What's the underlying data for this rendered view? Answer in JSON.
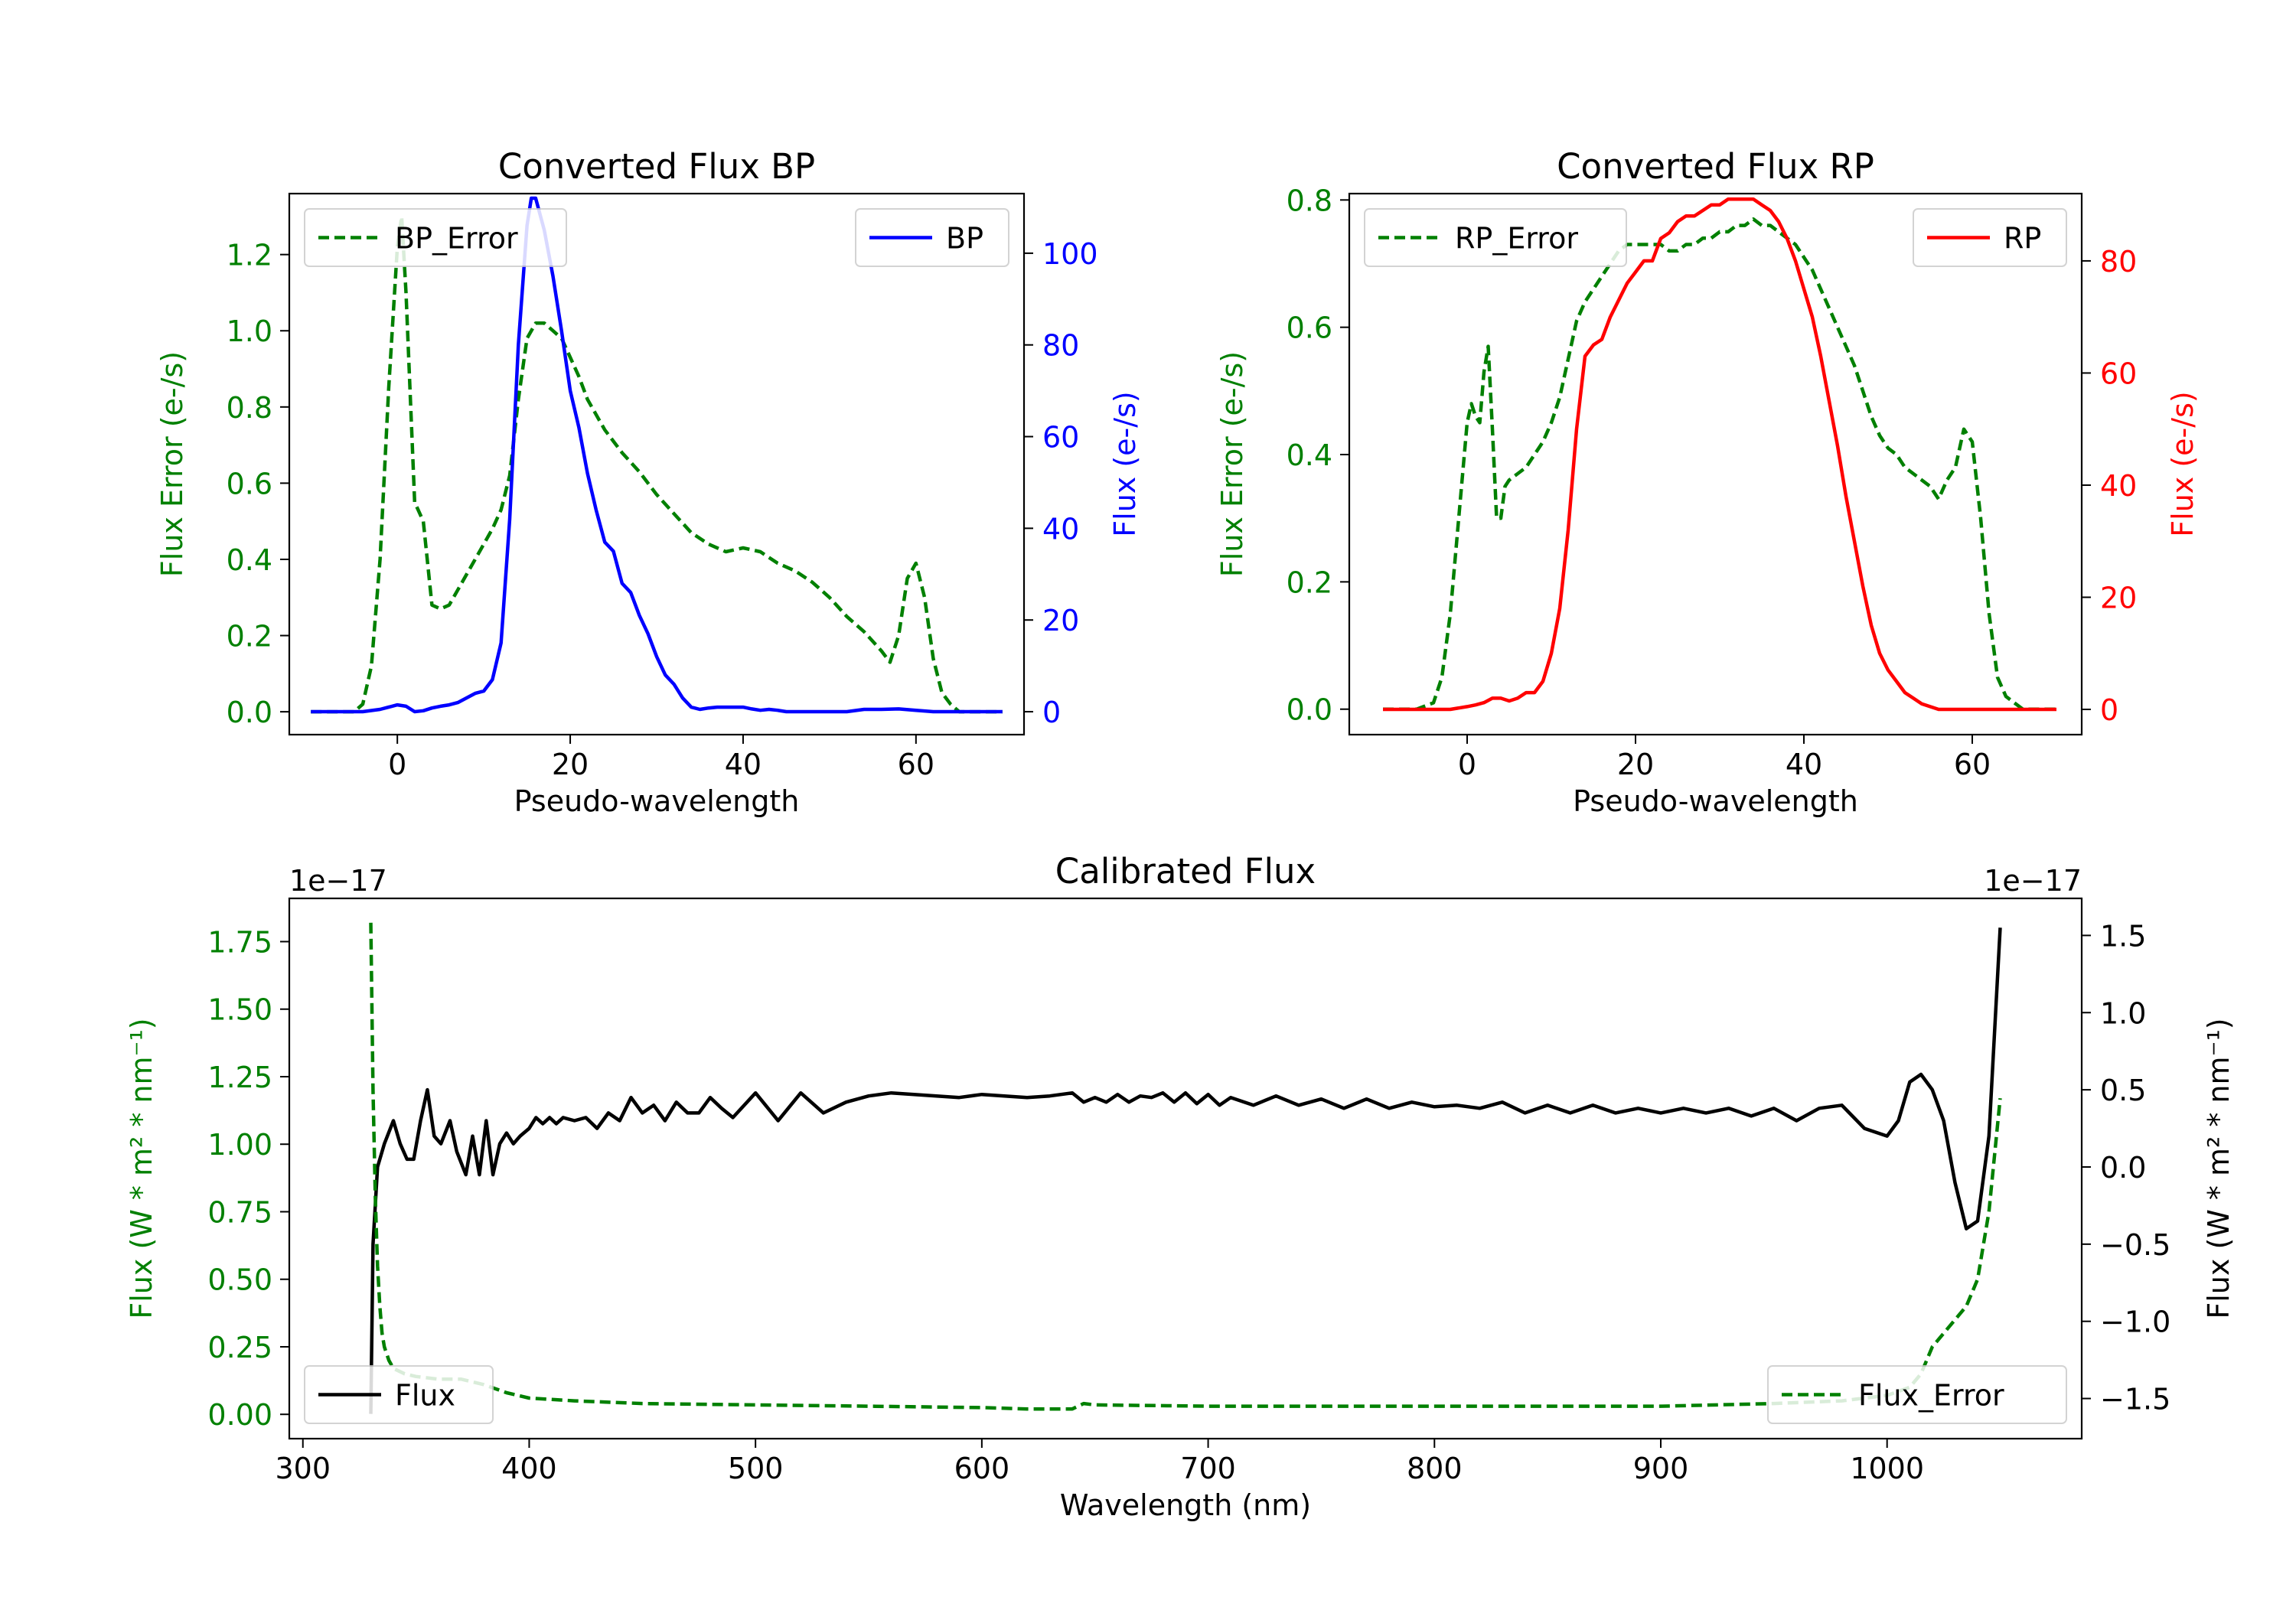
{
  "colors": {
    "bp": "#0000ff",
    "rp": "#ff0000",
    "error": "#008000",
    "flux": "#000000"
  },
  "chart_data": [
    {
      "type": "line",
      "title": "Converted Flux BP",
      "xlabel": "Pseudo-wavelength",
      "ylabel_left": "Flux Error (e-/s)",
      "ylabel_right": "Flux (e-/s)",
      "xlim": [
        -12.5,
        72.5
      ],
      "ylim_left": [
        -0.06,
        1.36
      ],
      "ylim_right": [
        -5,
        113
      ],
      "xticks": [
        0,
        20,
        40,
        60
      ],
      "xtick_labels": [
        "0",
        "20",
        "40",
        "60"
      ],
      "yticks_left": [
        0.0,
        0.2,
        0.4,
        0.6,
        0.8,
        1.0,
        1.2
      ],
      "ytick_labels_left": [
        "0.0",
        "0.2",
        "0.4",
        "0.6",
        "0.8",
        "1.0",
        "1.2"
      ],
      "yticks_right": [
        0,
        20,
        40,
        60,
        80,
        100
      ],
      "ytick_labels_right": [
        "0",
        "20",
        "40",
        "60",
        "80",
        "100"
      ],
      "series": [
        {
          "name": "BP_Error",
          "axis": "left",
          "style": "dashed",
          "color_key": "error",
          "x": [
            -10,
            -6,
            -5,
            -4,
            -3,
            -2,
            -1,
            0,
            0.5,
            1,
            2,
            3,
            4,
            5,
            6,
            7,
            8,
            9,
            10,
            11,
            12,
            13,
            14,
            15,
            16,
            17,
            18,
            19,
            20,
            21,
            22,
            23,
            24,
            25,
            26,
            28,
            30,
            32,
            34,
            36,
            38,
            40,
            42,
            44,
            46,
            48,
            50,
            52,
            54,
            56,
            57,
            58,
            59,
            60,
            61,
            62,
            63,
            64,
            65,
            66,
            67,
            68,
            69,
            70
          ],
          "y": [
            0,
            0,
            0,
            0.02,
            0.12,
            0.4,
            0.85,
            1.22,
            1.3,
            1.1,
            0.55,
            0.5,
            0.28,
            0.27,
            0.28,
            0.32,
            0.36,
            0.4,
            0.44,
            0.48,
            0.53,
            0.62,
            0.82,
            0.98,
            1.02,
            1.02,
            1.0,
            0.98,
            0.93,
            0.88,
            0.82,
            0.78,
            0.74,
            0.71,
            0.68,
            0.63,
            0.57,
            0.52,
            0.47,
            0.44,
            0.42,
            0.43,
            0.42,
            0.39,
            0.37,
            0.34,
            0.3,
            0.25,
            0.21,
            0.16,
            0.13,
            0.2,
            0.35,
            0.39,
            0.3,
            0.14,
            0.05,
            0.02,
            0,
            0,
            0,
            0,
            0,
            0
          ]
        },
        {
          "name": "BP",
          "axis": "right",
          "style": "solid",
          "color_key": "bp",
          "x": [
            -10,
            -6,
            -4,
            -2,
            0,
            1,
            2,
            3,
            4,
            5,
            6,
            7,
            8,
            9,
            10,
            11,
            12,
            13,
            14,
            15,
            15.5,
            16,
            17,
            18,
            19,
            20,
            21,
            22,
            23,
            24,
            25,
            26,
            27,
            28,
            29,
            30,
            31,
            32,
            33,
            34,
            35,
            36,
            37,
            38,
            39,
            40,
            41,
            42,
            43,
            44,
            45,
            46,
            48,
            50,
            52,
            54,
            56,
            58,
            60,
            62,
            64,
            66,
            68,
            70
          ],
          "y": [
            0,
            0,
            0,
            0.5,
            1.5,
            1.2,
            0,
            0.2,
            0.8,
            1.2,
            1.5,
            2,
            3,
            4,
            4.5,
            7,
            15,
            42,
            80,
            106,
            112,
            112,
            105,
            95,
            83,
            70,
            62,
            52,
            44,
            37,
            35,
            28,
            26,
            21,
            17,
            12,
            8,
            6,
            3,
            1,
            0.5,
            0.8,
            1,
            1,
            1,
            1,
            0.6,
            0.3,
            0.5,
            0.3,
            0,
            0,
            0,
            0,
            0,
            0.5,
            0.5,
            0.6,
            0.3,
            0,
            0,
            0,
            0,
            0
          ]
        }
      ]
    },
    {
      "type": "line",
      "title": "Converted Flux RP",
      "xlabel": "Pseudo-wavelength",
      "ylabel_left": "Flux Error (e-/s)",
      "ylabel_right": "Flux (e-/s)",
      "xlim": [
        -14,
        73
      ],
      "ylim_left": [
        -0.04,
        0.81
      ],
      "ylim_right": [
        -4.5,
        92
      ],
      "xticks": [
        0,
        20,
        40,
        60
      ],
      "xtick_labels": [
        "0",
        "20",
        "40",
        "60"
      ],
      "yticks_left": [
        0.0,
        0.2,
        0.4,
        0.6,
        0.8
      ],
      "ytick_labels_left": [
        "0.0",
        "0.2",
        "0.4",
        "0.6",
        "0.8"
      ],
      "yticks_right": [
        0,
        20,
        40,
        60,
        80
      ],
      "ytick_labels_right": [
        "0",
        "20",
        "40",
        "60",
        "80"
      ],
      "series": [
        {
          "name": "RP_Error",
          "axis": "left",
          "style": "dashed",
          "color_key": "error",
          "x": [
            -10,
            -6,
            -4,
            -3,
            -2,
            -1,
            0,
            0.5,
            1,
            1.5,
            2,
            2.5,
            3,
            3.5,
            4,
            4.5,
            5,
            6,
            7,
            8,
            9,
            10,
            11,
            12,
            13,
            14,
            15,
            16,
            17,
            18,
            19,
            20,
            21,
            22,
            23,
            24,
            25,
            26,
            27,
            28,
            29,
            30,
            31,
            32,
            33,
            34,
            35,
            36,
            37,
            38,
            39,
            40,
            41,
            42,
            43,
            44,
            45,
            46,
            47,
            48,
            49,
            50,
            51,
            52,
            53,
            54,
            55,
            56,
            57,
            58,
            59,
            60,
            61,
            62,
            63,
            64,
            65,
            66,
            68,
            70
          ],
          "y": [
            0,
            0,
            0.01,
            0.05,
            0.15,
            0.3,
            0.45,
            0.48,
            0.46,
            0.45,
            0.53,
            0.57,
            0.44,
            0.3,
            0.3,
            0.35,
            0.36,
            0.37,
            0.38,
            0.4,
            0.42,
            0.45,
            0.49,
            0.55,
            0.61,
            0.64,
            0.66,
            0.68,
            0.7,
            0.72,
            0.73,
            0.73,
            0.73,
            0.73,
            0.73,
            0.72,
            0.72,
            0.73,
            0.73,
            0.74,
            0.74,
            0.75,
            0.75,
            0.76,
            0.76,
            0.77,
            0.76,
            0.76,
            0.75,
            0.74,
            0.73,
            0.71,
            0.69,
            0.66,
            0.63,
            0.6,
            0.57,
            0.54,
            0.5,
            0.46,
            0.43,
            0.41,
            0.4,
            0.38,
            0.37,
            0.36,
            0.35,
            0.33,
            0.36,
            0.38,
            0.44,
            0.42,
            0.3,
            0.15,
            0.05,
            0.02,
            0.01,
            0,
            0,
            0
          ]
        },
        {
          "name": "RP",
          "axis": "right",
          "style": "solid",
          "color_key": "rp",
          "x": [
            -10,
            -4,
            -2,
            0,
            1,
            2,
            3,
            4,
            5,
            6,
            7,
            8,
            9,
            10,
            11,
            12,
            13,
            14,
            15,
            16,
            17,
            18,
            19,
            20,
            21,
            22,
            23,
            24,
            25,
            26,
            27,
            28,
            29,
            30,
            31,
            32,
            33,
            34,
            35,
            36,
            37,
            38,
            39,
            40,
            41,
            42,
            43,
            44,
            45,
            46,
            47,
            48,
            49,
            50,
            51,
            52,
            53,
            54,
            55,
            56,
            58,
            60,
            62,
            64,
            66,
            68,
            70
          ],
          "y": [
            0,
            0,
            0,
            0.5,
            0.8,
            1.2,
            2,
            2,
            1.5,
            2,
            3,
            3,
            5,
            10,
            18,
            32,
            50,
            63,
            65,
            66,
            70,
            73,
            76,
            78,
            80,
            80,
            84,
            85,
            87,
            88,
            88,
            89,
            90,
            90,
            91,
            91,
            91,
            91,
            90,
            89,
            87,
            84,
            80,
            75,
            70,
            63,
            55,
            47,
            38,
            30,
            22,
            15,
            10,
            7,
            5,
            3,
            2,
            1,
            0.5,
            0,
            0,
            0,
            0,
            0,
            0,
            0,
            0
          ]
        }
      ]
    },
    {
      "type": "line",
      "title": "Calibrated Flux",
      "xlabel": "Wavelength (nm)",
      "ylabel_left": "Flux (W * m² * nm⁻¹)",
      "ylabel_right": "Flux (W * m² * nm⁻¹)",
      "offset_left": "1e−17",
      "offset_right": "1e−17",
      "xlim": [
        294,
        1086
      ],
      "ylim_left": [
        -0.09,
        1.91
      ],
      "ylim_right": [
        -1.76,
        1.74
      ],
      "xticks": [
        300,
        400,
        500,
        600,
        700,
        800,
        900,
        1000
      ],
      "xtick_labels": [
        "300",
        "400",
        "500",
        "600",
        "700",
        "800",
        "900",
        "1000"
      ],
      "yticks_left": [
        0.0,
        0.25,
        0.5,
        0.75,
        1.0,
        1.25,
        1.5,
        1.75
      ],
      "ytick_labels_left": [
        "0.00",
        "0.25",
        "0.50",
        "0.75",
        "1.00",
        "1.25",
        "1.50",
        "1.75"
      ],
      "yticks_right": [
        -1.5,
        -1.0,
        -0.5,
        0.0,
        0.5,
        1.0,
        1.5
      ],
      "ytick_labels_right": [
        "−1.5",
        "−1.0",
        "−0.5",
        "0.0",
        "0.5",
        "1.0",
        "1.5"
      ],
      "series": [
        {
          "name": "Flux",
          "axis": "right",
          "style": "solid",
          "color_key": "flux",
          "x": [
            330,
            331,
            333,
            336,
            340,
            343,
            346,
            349,
            352,
            355,
            358,
            361,
            365,
            368,
            372,
            375,
            378,
            381,
            384,
            387,
            390,
            393,
            396,
            400,
            403,
            406,
            409,
            412,
            415,
            420,
            425,
            430,
            435,
            440,
            445,
            450,
            455,
            460,
            465,
            470,
            475,
            480,
            485,
            490,
            500,
            510,
            520,
            530,
            540,
            550,
            560,
            570,
            580,
            590,
            600,
            610,
            620,
            630,
            640,
            645,
            650,
            655,
            660,
            665,
            670,
            675,
            680,
            685,
            690,
            695,
            700,
            705,
            710,
            720,
            730,
            740,
            750,
            760,
            770,
            780,
            790,
            800,
            810,
            820,
            830,
            840,
            850,
            860,
            870,
            880,
            890,
            900,
            910,
            920,
            930,
            940,
            950,
            960,
            970,
            980,
            990,
            1000,
            1005,
            1010,
            1015,
            1020,
            1025,
            1030,
            1035,
            1040,
            1045,
            1050
          ],
          "y": [
            -1.6,
            -0.5,
            0,
            0.15,
            0.3,
            0.15,
            0.05,
            0.05,
            0.3,
            0.5,
            0.2,
            0.15,
            0.3,
            0.1,
            -0.05,
            0.2,
            -0.05,
            0.3,
            -0.05,
            0.15,
            0.22,
            0.15,
            0.2,
            0.25,
            0.32,
            0.28,
            0.32,
            0.28,
            0.32,
            0.3,
            0.32,
            0.25,
            0.35,
            0.3,
            0.45,
            0.35,
            0.4,
            0.3,
            0.42,
            0.35,
            0.35,
            0.45,
            0.38,
            0.32,
            0.48,
            0.3,
            0.48,
            0.35,
            0.42,
            0.46,
            0.48,
            0.47,
            0.46,
            0.45,
            0.47,
            0.46,
            0.45,
            0.46,
            0.48,
            0.42,
            0.45,
            0.42,
            0.47,
            0.42,
            0.46,
            0.45,
            0.48,
            0.42,
            0.48,
            0.41,
            0.47,
            0.4,
            0.45,
            0.4,
            0.46,
            0.4,
            0.44,
            0.38,
            0.44,
            0.38,
            0.42,
            0.39,
            0.4,
            0.38,
            0.42,
            0.35,
            0.4,
            0.35,
            0.4,
            0.35,
            0.38,
            0.35,
            0.38,
            0.35,
            0.38,
            0.33,
            0.38,
            0.3,
            0.38,
            0.4,
            0.25,
            0.2,
            0.3,
            0.55,
            0.6,
            0.5,
            0.3,
            -0.1,
            -0.4,
            -0.35,
            0.2,
            1.55
          ]
        },
        {
          "name": "Flux_Error",
          "axis": "left",
          "style": "dashed",
          "color_key": "error",
          "x": [
            330,
            331,
            332,
            333,
            334,
            335,
            336,
            338,
            340,
            345,
            350,
            360,
            370,
            380,
            390,
            400,
            420,
            450,
            500,
            550,
            600,
            620,
            635,
            640,
            645,
            650,
            700,
            750,
            800,
            850,
            900,
            950,
            980,
            1000,
            1010,
            1015,
            1020,
            1025,
            1030,
            1035,
            1040,
            1045,
            1050
          ],
          "y": [
            1.82,
            1.2,
            0.8,
            0.55,
            0.4,
            0.3,
            0.25,
            0.2,
            0.17,
            0.15,
            0.14,
            0.13,
            0.13,
            0.11,
            0.08,
            0.06,
            0.05,
            0.04,
            0.035,
            0.03,
            0.025,
            0.02,
            0.02,
            0.02,
            0.04,
            0.035,
            0.03,
            0.03,
            0.03,
            0.03,
            0.03,
            0.04,
            0.05,
            0.07,
            0.1,
            0.15,
            0.25,
            0.3,
            0.35,
            0.4,
            0.5,
            0.75,
            1.17
          ]
        }
      ]
    }
  ]
}
